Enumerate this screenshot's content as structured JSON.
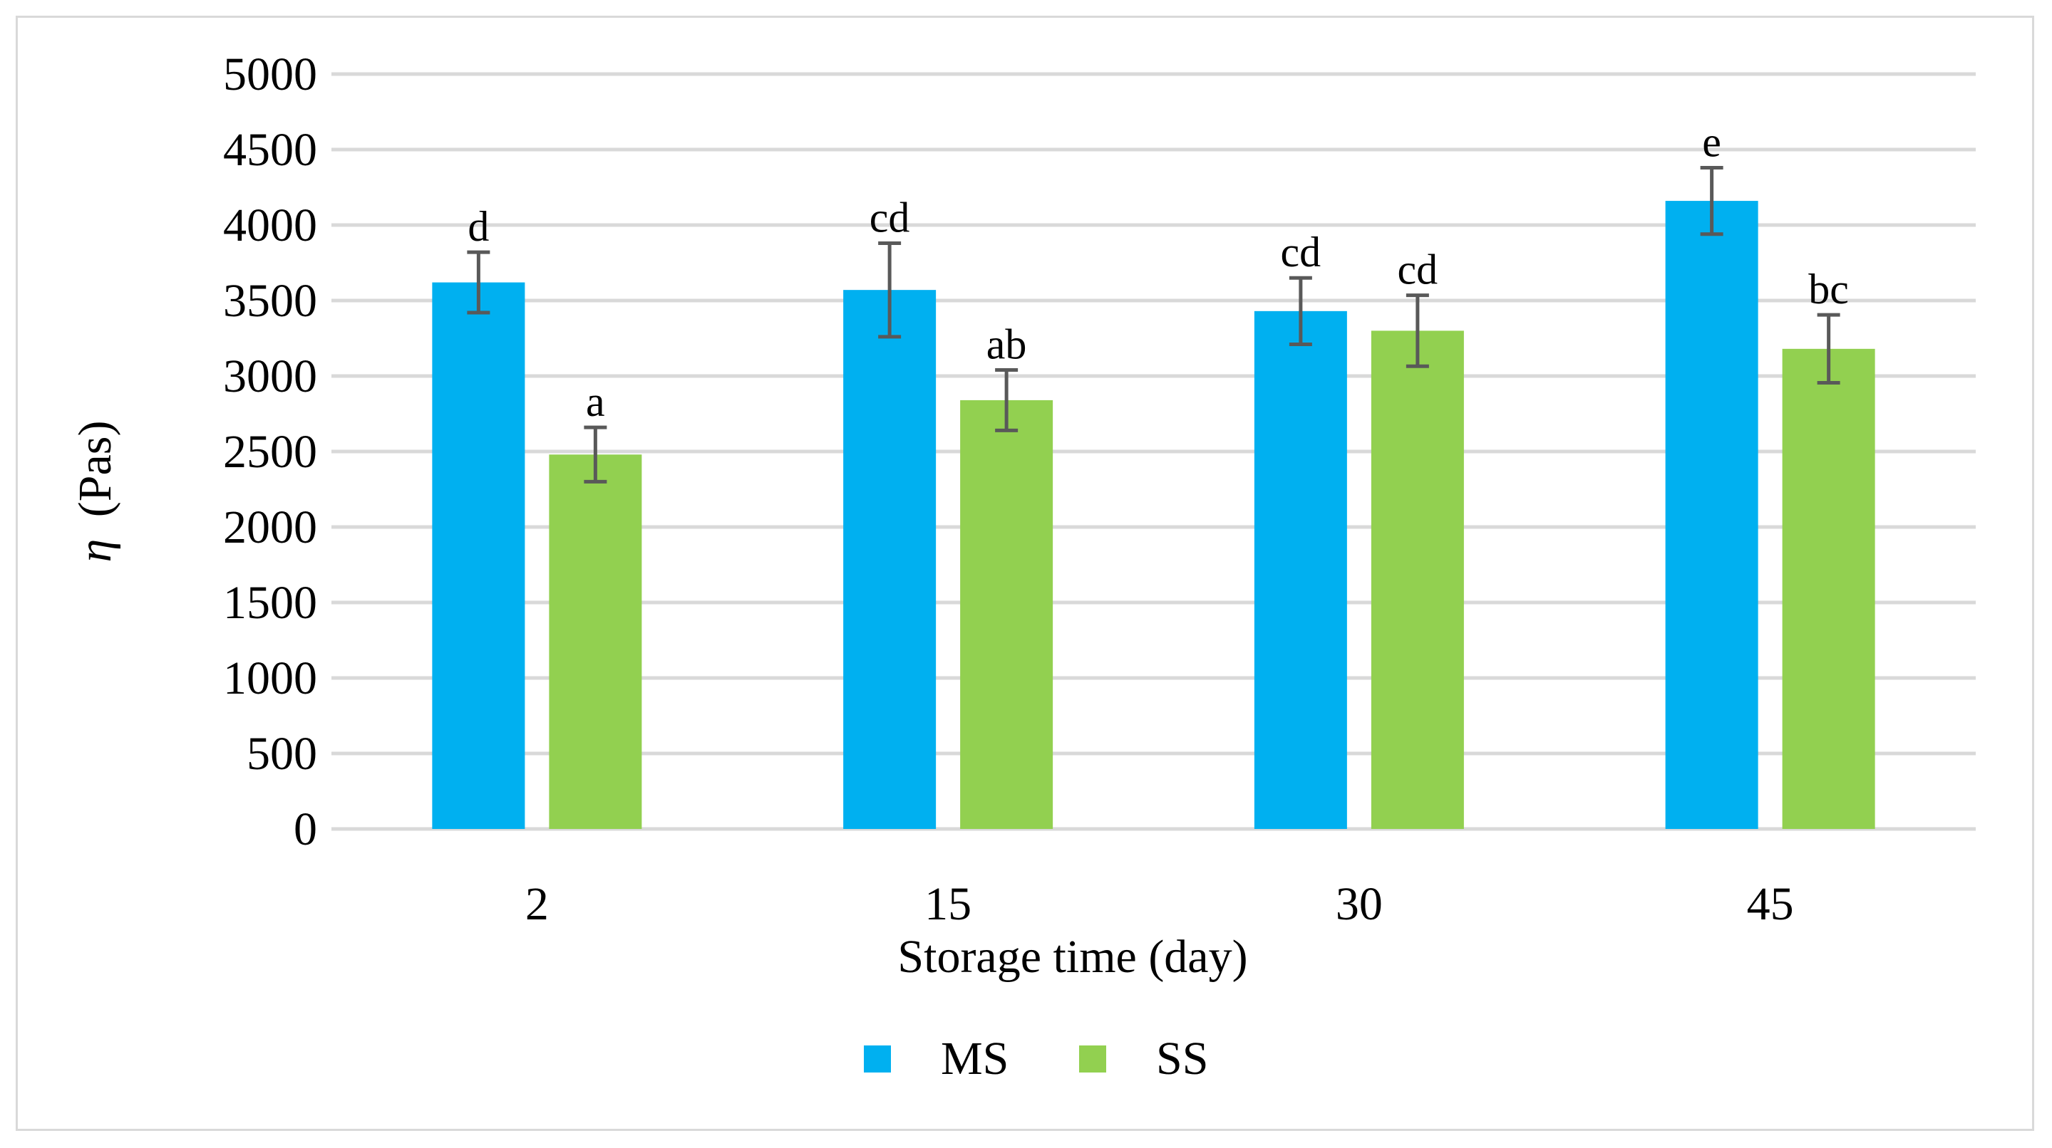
{
  "chart_data": {
    "type": "bar",
    "categories": [
      "2",
      "15",
      "30",
      "45"
    ],
    "series": [
      {
        "name": "MS",
        "color": "#00b0f0",
        "values": [
          3620,
          3570,
          3430,
          4160
        ],
        "errors": [
          200,
          310,
          220,
          220
        ],
        "letters": [
          "d",
          "cd",
          "cd",
          "e"
        ]
      },
      {
        "name": "SS",
        "color": "#92d050",
        "values": [
          2480,
          2840,
          3300,
          3180
        ],
        "errors": [
          180,
          200,
          235,
          225
        ],
        "letters": [
          "a",
          "ab",
          "cd",
          "bc"
        ]
      }
    ],
    "ylabel_symbol": "η",
    "ylabel_unit": "(Pas)",
    "xlabel": "Storage time (day)",
    "ylim": [
      0,
      5000
    ],
    "yticks": [
      0,
      500,
      1000,
      1500,
      2000,
      2500,
      3000,
      3500,
      4000,
      4500,
      5000
    ],
    "grid": true,
    "legend_position": "bottom-center",
    "gridline_color": "#d9d9d9",
    "error_bar_color": "#595959"
  }
}
